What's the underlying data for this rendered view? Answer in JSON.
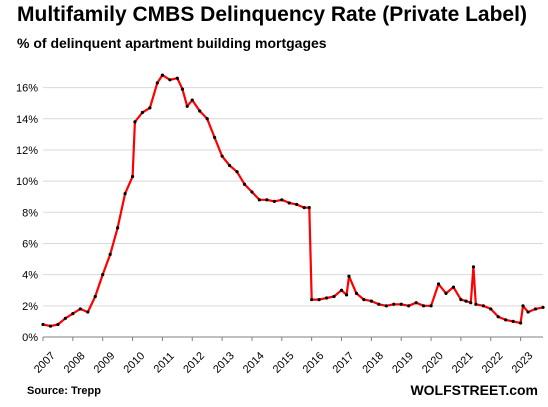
{
  "chart_data": {
    "type": "line",
    "title": "Multifamily  CMBS  Delinquency  Rate  (Private Label)",
    "subtitle": "% of delinquent apartment building mortgages",
    "source": "Source: Trepp",
    "brand": "WOLFSTREET.com",
    "xlabel": "",
    "ylabel": "",
    "xlim": [
      2007.0,
      2023.75
    ],
    "ylim": [
      0,
      17
    ],
    "y_ticks": [
      0,
      2,
      4,
      6,
      8,
      10,
      12,
      14,
      16
    ],
    "y_tick_labels": [
      "0%",
      "2%",
      "4%",
      "6%",
      "8%",
      "10%",
      "12%",
      "14%",
      "16%"
    ],
    "x_ticks": [
      2007,
      2008,
      2009,
      2010,
      2011,
      2012,
      2013,
      2014,
      2015,
      2016,
      2017,
      2018,
      2019,
      2020,
      2021,
      2022,
      2023
    ],
    "x_tick_labels": [
      "2007",
      "2008",
      "2009",
      "2010",
      "2011",
      "2012",
      "2013",
      "2014",
      "2015",
      "2016",
      "2017",
      "2018",
      "2019",
      "2020",
      "2021",
      "2022",
      "2023"
    ],
    "grid": true,
    "line_color": "#ff0000",
    "marker_color": "#000000",
    "series": [
      {
        "x": [
          2007.0,
          2007.25,
          2007.5,
          2007.75,
          2008.0,
          2008.25,
          2008.5,
          2008.75,
          2009.0,
          2009.25,
          2009.5,
          2009.75,
          2010.0,
          2010.08,
          2010.33,
          2010.58,
          2010.83,
          2011.0,
          2011.25,
          2011.5,
          2011.67,
          2011.83,
          2012.0,
          2012.25,
          2012.5,
          2012.75,
          2013.0,
          2013.25,
          2013.5,
          2013.75,
          2014.0,
          2014.25,
          2014.5,
          2014.75,
          2015.0,
          2015.25,
          2015.5,
          2015.75,
          2015.92,
          2016.0,
          2016.25,
          2016.5,
          2016.75,
          2017.0,
          2017.17,
          2017.25,
          2017.5,
          2017.75,
          2018.0,
          2018.25,
          2018.5,
          2018.75,
          2019.0,
          2019.25,
          2019.5,
          2019.75,
          2020.0,
          2020.25,
          2020.5,
          2020.75,
          2021.0,
          2021.17,
          2021.33,
          2021.42,
          2021.5,
          2021.75,
          2022.0,
          2022.25,
          2022.5,
          2022.75,
          2023.0,
          2023.08,
          2023.25,
          2023.5,
          2023.75
        ],
        "values": [
          0.8,
          0.7,
          0.8,
          1.2,
          1.5,
          1.8,
          1.6,
          2.6,
          4.0,
          5.3,
          7.0,
          9.2,
          10.3,
          13.8,
          14.4,
          14.7,
          16.3,
          16.8,
          16.5,
          16.6,
          15.9,
          14.8,
          15.2,
          14.5,
          14.0,
          12.8,
          11.6,
          11.0,
          10.6,
          9.8,
          9.3,
          8.8,
          8.8,
          8.7,
          8.8,
          8.6,
          8.5,
          8.3,
          8.3,
          2.4,
          2.4,
          2.5,
          2.6,
          3.0,
          2.7,
          3.9,
          2.8,
          2.4,
          2.3,
          2.1,
          2.0,
          2.1,
          2.1,
          2.0,
          2.2,
          2.0,
          2.0,
          3.4,
          2.8,
          3.2,
          2.4,
          2.3,
          2.2,
          4.5,
          2.1,
          2.0,
          1.8,
          1.3,
          1.1,
          1.0,
          0.9,
          2.0,
          1.6,
          1.8,
          1.9
        ]
      }
    ]
  }
}
